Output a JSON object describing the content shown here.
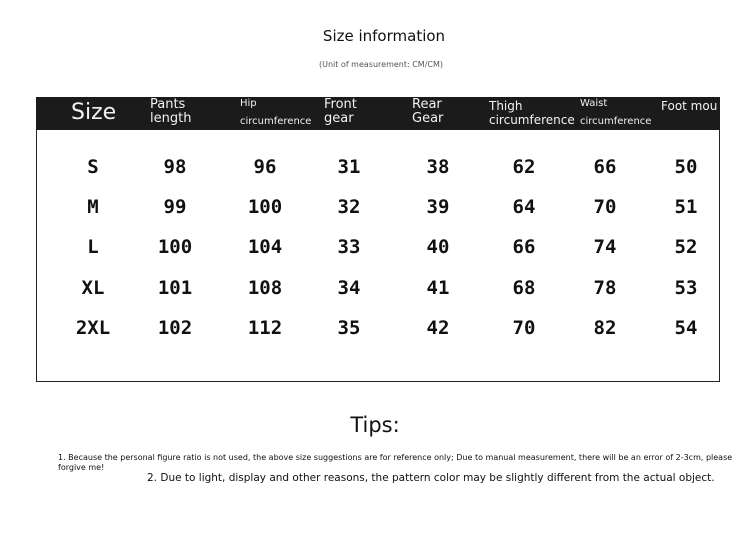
{
  "title": "Size information",
  "unit_note": "(Unit of measurement: CM/CM)",
  "headers": [
    {
      "line1": "Size"
    },
    {
      "line1": "Pants",
      "line2": "length"
    },
    {
      "line1": "Hip",
      "line2": "circumference"
    },
    {
      "line1": "Front",
      "line2": "gear"
    },
    {
      "line1": "Rear",
      "line2": "Gear"
    },
    {
      "line1": "Thigh",
      "line2": "circumference"
    },
    {
      "line1": "Waist",
      "line2": "circumference"
    },
    {
      "line1": "Foot mou"
    }
  ],
  "rows": [
    [
      "S",
      "98",
      "96",
      "31",
      "38",
      "62",
      "66",
      "50"
    ],
    [
      "M",
      "99",
      "100",
      "32",
      "39",
      "64",
      "70",
      "51"
    ],
    [
      "L",
      "100",
      "104",
      "33",
      "40",
      "66",
      "74",
      "52"
    ],
    [
      "XL",
      "101",
      "108",
      "34",
      "41",
      "68",
      "78",
      "53"
    ],
    [
      "2XL",
      "102",
      "112",
      "35",
      "42",
      "70",
      "82",
      "54"
    ]
  ],
  "tips": {
    "title": "Tips:",
    "note1": "1. Because the personal figure ratio is not used, the above size suggestions are for reference only; Due to manual measurement, there will be an error of 2-3cm, please forgive me!",
    "note2": "2. Due to light, display and other reasons, the pattern color may be slightly different from the actual object."
  }
}
